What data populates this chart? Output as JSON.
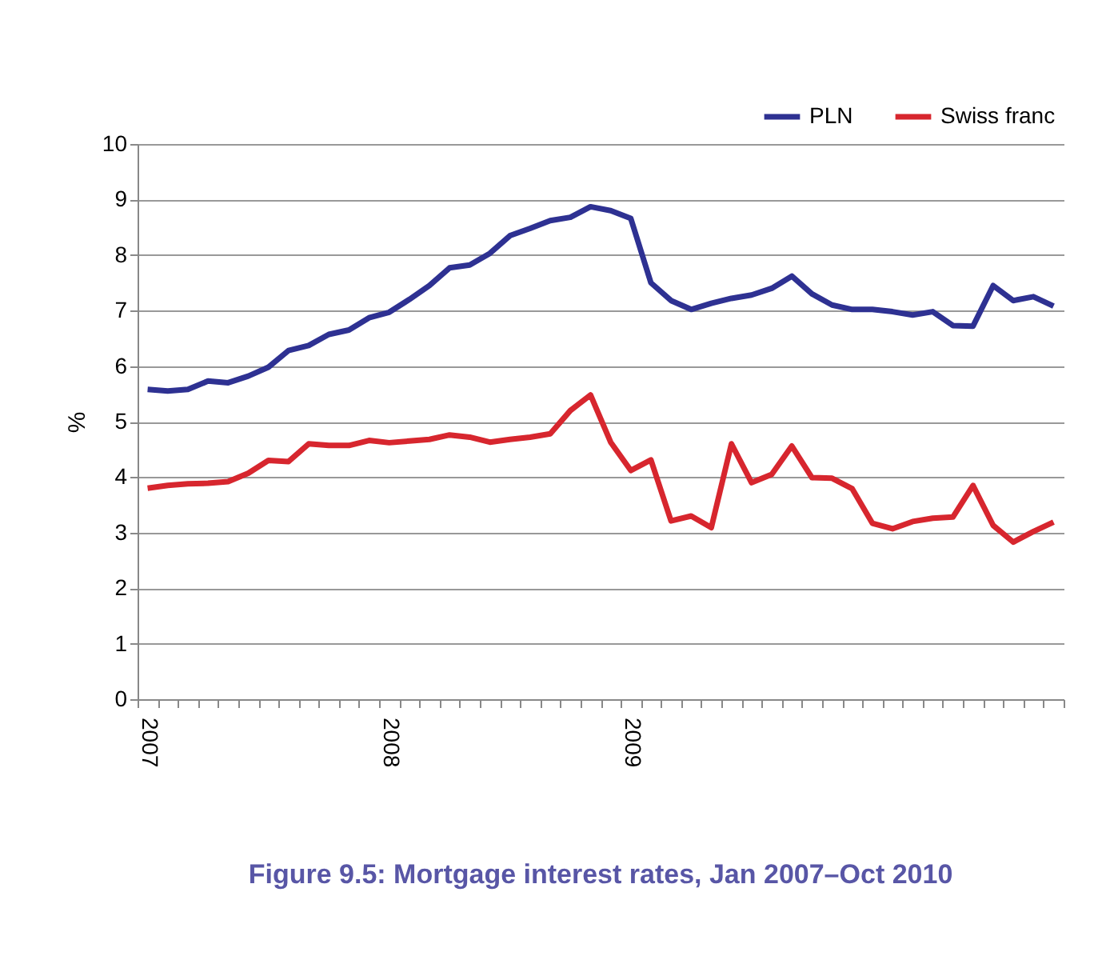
{
  "chart_data": {
    "type": "line",
    "title": "Figure 9.5: Mortgage interest rates, Jan 2007–Oct 2010",
    "ylabel": "%",
    "categories": [
      "2007",
      null,
      null,
      null,
      null,
      null,
      null,
      null,
      null,
      null,
      null,
      null,
      "2008",
      null,
      null,
      null,
      null,
      null,
      null,
      null,
      null,
      null,
      null,
      null,
      "2009",
      null,
      null,
      null,
      null,
      null,
      null,
      null,
      null,
      null,
      null,
      null,
      null,
      null,
      null,
      null,
      null,
      null,
      null,
      null,
      null,
      null
    ],
    "series": [
      {
        "name": "PLN",
        "color": "#2e3192",
        "values": [
          5.58,
          5.55,
          5.58,
          5.73,
          5.7,
          5.82,
          5.98,
          6.28,
          6.37,
          6.57,
          6.65,
          6.87,
          6.97,
          7.2,
          7.45,
          7.77,
          7.82,
          8.03,
          8.35,
          8.48,
          8.62,
          8.68,
          8.87,
          8.8,
          8.66,
          7.5,
          7.18,
          7.02,
          7.13,
          7.22,
          7.28,
          7.4,
          7.62,
          7.3,
          7.1,
          7.02,
          7.02,
          6.98,
          6.92,
          6.98,
          6.73,
          6.72,
          7.45,
          7.18,
          7.25,
          7.08
        ]
      },
      {
        "name": "Swiss franc",
        "color": "#d7262e",
        "values": [
          3.8,
          3.85,
          3.88,
          3.89,
          3.92,
          4.07,
          4.3,
          4.28,
          4.6,
          4.57,
          4.57,
          4.66,
          4.62,
          4.65,
          4.68,
          4.76,
          4.72,
          4.63,
          4.68,
          4.72,
          4.78,
          5.2,
          5.48,
          4.63,
          4.12,
          4.31,
          3.21,
          3.3,
          3.09,
          4.6,
          3.9,
          4.05,
          4.56,
          3.99,
          3.98,
          3.79,
          3.17,
          3.07,
          3.2,
          3.26,
          3.28,
          3.85,
          3.13,
          2.83,
          3.02,
          3.19
        ]
      }
    ],
    "ylim": [
      0,
      10
    ],
    "yticks": [
      0,
      1,
      2,
      3,
      4,
      5,
      6,
      7,
      8,
      9,
      10
    ],
    "grid": "y",
    "legend": "top right",
    "marker": "none",
    "line_style": "solid"
  }
}
